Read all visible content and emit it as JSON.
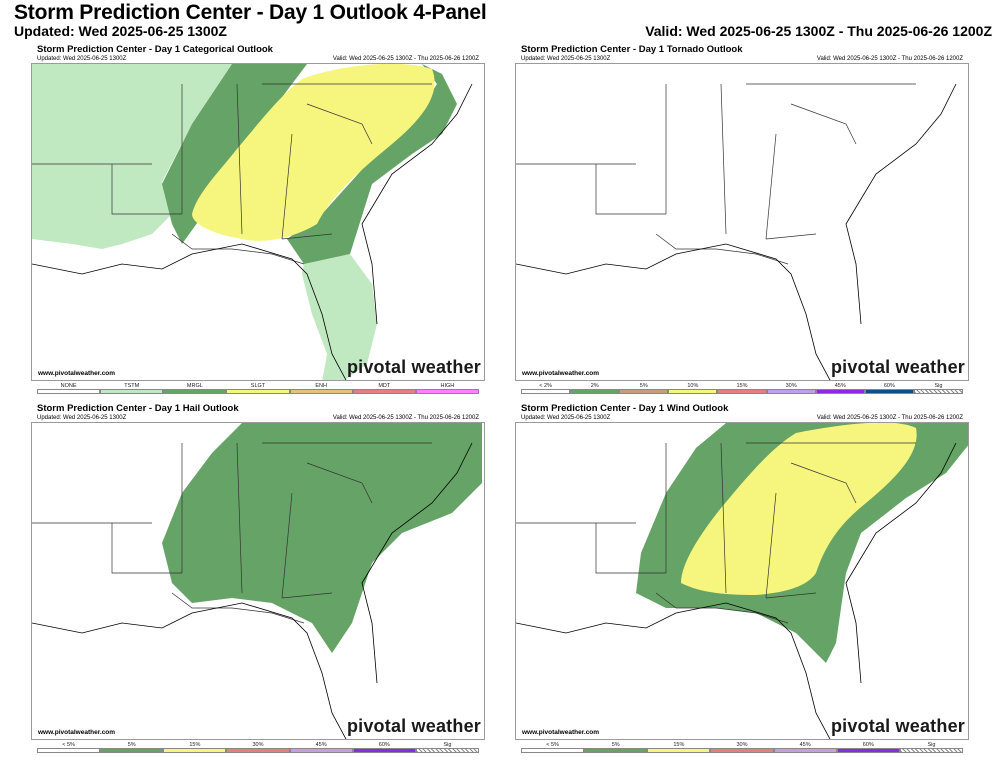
{
  "header": {
    "title": "Storm Prediction Center - Day 1 Outlook 4-Panel",
    "updated": "Updated: Wed 2025-06-25 1300Z",
    "valid": "Valid: Wed 2025-06-25 1300Z - Thu 2025-06-26 1200Z"
  },
  "panels": [
    {
      "title": "Storm Prediction Center - Day 1 Categorical Outlook",
      "updated": "Updated: Wed 2025-06-25 1300Z",
      "valid": "Valid: Wed 2025-06-25 1300Z - Thu 2025-06-26 1200Z",
      "site": "www.pivotalweather.com",
      "brand": "pivotal weather",
      "outlook_areas": [
        "TSTM",
        "MRGL",
        "SLGT"
      ],
      "legend": [
        {
          "label": "NONE",
          "color": "#ffffff"
        },
        {
          "label": "TSTM",
          "color": "#c1e9c1"
        },
        {
          "label": "MRGL",
          "color": "#66a366"
        },
        {
          "label": "SLGT",
          "color": "#f6f67f"
        },
        {
          "label": "ENH",
          "color": "#e6c27f"
        },
        {
          "label": "MDT",
          "color": "#e67f7f"
        },
        {
          "label": "HIGH",
          "color": "#ff7fff"
        }
      ]
    },
    {
      "title": "Storm Prediction Center - Day 1 Tornado Outlook",
      "updated": "Updated: Wed 2025-06-25 1300Z",
      "valid": "Valid: Wed 2025-06-25 1300Z - Thu 2025-06-26 1200Z",
      "site": "www.pivotalweather.com",
      "brand": "pivotal weather",
      "outlook_areas": [],
      "legend": [
        {
          "label": "< 2%",
          "color": "#ffffff"
        },
        {
          "label": "2%",
          "color": "#66a366"
        },
        {
          "label": "5%",
          "color": "#c49e7f"
        },
        {
          "label": "10%",
          "color": "#f6f67f"
        },
        {
          "label": "15%",
          "color": "#e67f7f"
        },
        {
          "label": "30%",
          "color": "#c49ee6"
        },
        {
          "label": "45%",
          "color": "#8a2be2"
        },
        {
          "label": "60%",
          "color": "#104e8b"
        },
        {
          "label": "Sig",
          "color": "hatch"
        }
      ]
    },
    {
      "title": "Storm Prediction Center - Day 1 Hail Outlook",
      "updated": "Updated: Wed 2025-06-25 1300Z",
      "valid": "Valid: Wed 2025-06-25 1300Z - Thu 2025-06-26 1200Z",
      "site": "www.pivotalweather.com",
      "brand": "pivotal weather",
      "outlook_areas": [
        "5%"
      ],
      "legend": [
        {
          "label": "< 5%",
          "color": "#ffffff"
        },
        {
          "label": "5%",
          "color": "#66a366"
        },
        {
          "label": "15%",
          "color": "#f6f67f"
        },
        {
          "label": "30%",
          "color": "#e67f7f"
        },
        {
          "label": "45%",
          "color": "#c49ee6"
        },
        {
          "label": "60%",
          "color": "#8a2be2"
        },
        {
          "label": "Sig",
          "color": "hatch"
        }
      ]
    },
    {
      "title": "Storm Prediction Center - Day 1 Wind Outlook",
      "updated": "Updated: Wed 2025-06-25 1300Z",
      "valid": "Valid: Wed 2025-06-25 1300Z - Thu 2025-06-26 1200Z",
      "site": "www.pivotalweather.com",
      "brand": "pivotal weather",
      "outlook_areas": [
        "5%",
        "15%"
      ],
      "legend": [
        {
          "label": "< 5%",
          "color": "#ffffff"
        },
        {
          "label": "5%",
          "color": "#66a366"
        },
        {
          "label": "15%",
          "color": "#f6f67f"
        },
        {
          "label": "30%",
          "color": "#e67f7f"
        },
        {
          "label": "45%",
          "color": "#c49ee6"
        },
        {
          "label": "60%",
          "color": "#8a2be2"
        },
        {
          "label": "Sig",
          "color": "hatch"
        }
      ]
    }
  ]
}
